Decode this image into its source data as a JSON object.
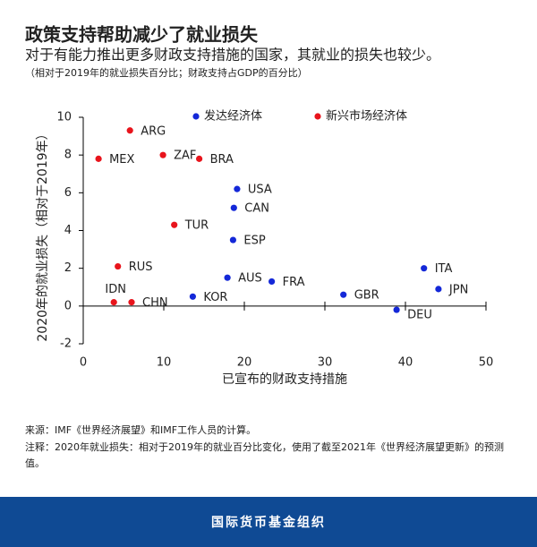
{
  "chart_data": {
    "type": "scatter",
    "title": "政策支持帮助减少了就业损失",
    "subtitle": "对于有能力推出更多财政支持措施的国家，其就业的损失也较少。",
    "note": "（相对于2019年的就业损失百分比；财政支持占GDP的百分比）",
    "x_label": "已宣布的财政支持措施",
    "y_label": "2020年的就业损失（相对于2019年）",
    "xlim": [
      0,
      50
    ],
    "xticks": [
      0,
      10,
      20,
      30,
      40,
      50
    ],
    "ylim": [
      -2,
      10
    ],
    "yticks": [
      -2,
      0,
      2,
      4,
      6,
      8,
      10
    ],
    "series": [
      {
        "name": "新兴市场经济体",
        "color": "#e8141c",
        "labels": [
          "ARG",
          "MEX",
          "ZAF",
          "BRA",
          "TUR",
          "RUS",
          "IDN",
          "CHN"
        ],
        "x": [
          5.8,
          1.9,
          9.9,
          14.4,
          11.3,
          4.3,
          3.8,
          6.0
        ],
        "y": [
          9.3,
          7.8,
          8.0,
          7.8,
          4.3,
          2.1,
          0.2,
          0.2
        ]
      },
      {
        "name": "发达经济体",
        "color": "#1428d8",
        "labels": [
          "USA",
          "CAN",
          "ESP",
          "AUS",
          "FRA",
          "KOR",
          "GBR",
          "DEU",
          "ITA",
          "JPN"
        ],
        "x": [
          19.1,
          18.7,
          18.6,
          17.9,
          23.4,
          13.6,
          32.3,
          38.9,
          42.3,
          44.1
        ],
        "y": [
          6.2,
          5.2,
          3.5,
          1.5,
          1.3,
          0.5,
          0.6,
          -0.2,
          2.0,
          0.9
        ]
      }
    ]
  },
  "footer": {
    "source": "来源：IMF《世界经济展望》和IMF工作人员的计算。",
    "note": "注释：2020年就业损失：相对于2019年的就业百分比变化，使用了截至2021年《世界经济展望更新》的预测值。",
    "org": "国际货币基金组织"
  }
}
